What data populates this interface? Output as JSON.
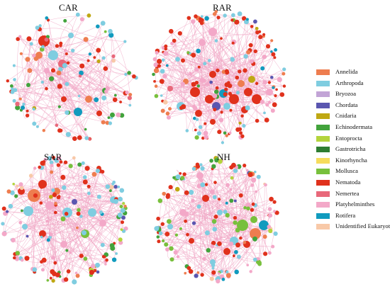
{
  "panels": [
    {
      "key": "car",
      "title": "CAR"
    },
    {
      "key": "rar",
      "title": "RAR"
    },
    {
      "key": "sar",
      "title": "SAR"
    },
    {
      "key": "nh",
      "title": "NH"
    }
  ],
  "edge_color": "#f0a6c4",
  "legend": [
    {
      "label": "Annelida",
      "color": "#ee7d4f"
    },
    {
      "label": "Arthropoda",
      "color": "#7fcde0"
    },
    {
      "label": "Bryozoa",
      "color": "#c2a4d6"
    },
    {
      "label": "Chordata",
      "color": "#5a56b0"
    },
    {
      "label": "Cnidaria",
      "color": "#bfa813"
    },
    {
      "label": "Echinodermata",
      "color": "#42a33c"
    },
    {
      "label": "Entoprocta",
      "color": "#b4d43c"
    },
    {
      "label": "Gastrotricha",
      "color": "#2e7d32"
    },
    {
      "label": "Kinorhyncha",
      "color": "#f6dc5c"
    },
    {
      "label": "Mollusca",
      "color": "#78c03c"
    },
    {
      "label": "Nematoda",
      "color": "#e0311c"
    },
    {
      "label": "Nemertea",
      "color": "#e8687a"
    },
    {
      "label": "Platyhelminthes",
      "color": "#f3a8c8"
    },
    {
      "label": "Rotifera",
      "color": "#119bbe"
    },
    {
      "label": "Unidentified Eukaryota",
      "color": "#f8c9a8"
    }
  ]
}
